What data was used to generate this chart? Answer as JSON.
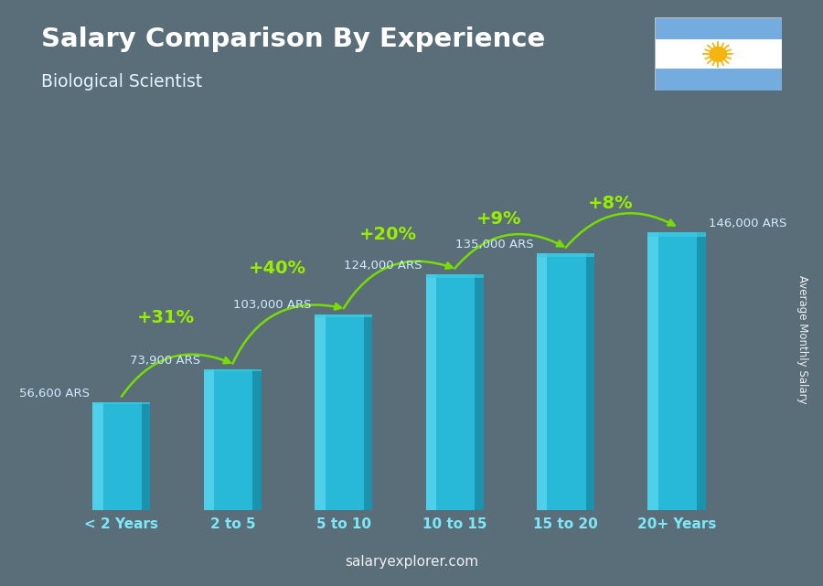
{
  "title": "Salary Comparison By Experience",
  "subtitle": "Biological Scientist",
  "ylabel": "Average Monthly Salary",
  "categories": [
    "< 2 Years",
    "2 to 5",
    "5 to 10",
    "10 to 15",
    "15 to 20",
    "20+ Years"
  ],
  "values": [
    56600,
    73900,
    103000,
    124000,
    135000,
    146000
  ],
  "value_labels": [
    "56,600 ARS",
    "73,900 ARS",
    "103,000 ARS",
    "124,000 ARS",
    "135,000 ARS",
    "146,000 ARS"
  ],
  "pct_labels": [
    "+31%",
    "+40%",
    "+20%",
    "+9%",
    "+8%"
  ],
  "bar_color_main": "#29b9d8",
  "bar_color_light": "#55d4ee",
  "bar_color_dark": "#1a8faa",
  "bar_color_top": "#3ecae0",
  "bg_color": "#5a6e7a",
  "title_color": "#ffffff",
  "subtitle_color": "#e8f4ff",
  "label_color": "#d0ecff",
  "tick_color": "#7de8f8",
  "pct_color": "#99ee00",
  "arrow_color": "#77dd00",
  "watermark": "salaryexplorer.com",
  "ylim": [
    0,
    185000
  ],
  "figsize": [
    9.0,
    6.41
  ],
  "dpi": 100
}
